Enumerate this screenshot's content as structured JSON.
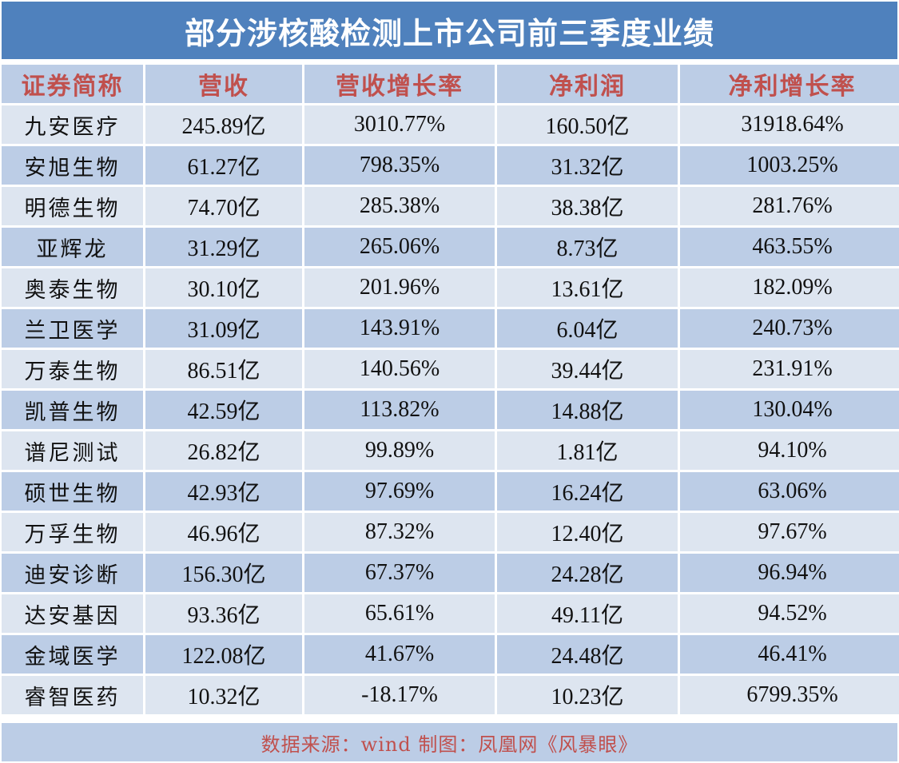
{
  "title": "部分涉核酸检测上市公司前三季度业绩",
  "table": {
    "headers": [
      "证券简称",
      "营收",
      "营收增长率",
      "净利润",
      "净利增长率"
    ],
    "rows": [
      [
        "九安医疗",
        "245.89亿",
        "3010.77%",
        "160.50亿",
        "31918.64%"
      ],
      [
        "安旭生物",
        "61.27亿",
        "798.35%",
        "31.32亿",
        "1003.25%"
      ],
      [
        "明德生物",
        "74.70亿",
        "285.38%",
        "38.38亿",
        "281.76%"
      ],
      [
        "亚辉龙",
        "31.29亿",
        "265.06%",
        "8.73亿",
        "463.55%"
      ],
      [
        "奥泰生物",
        "30.10亿",
        "201.96%",
        "13.61亿",
        "182.09%"
      ],
      [
        "兰卫医学",
        "31.09亿",
        "143.91%",
        "6.04亿",
        "240.73%"
      ],
      [
        "万泰生物",
        "86.51亿",
        "140.56%",
        "39.44亿",
        "231.91%"
      ],
      [
        "凯普生物",
        "42.59亿",
        "113.82%",
        "14.88亿",
        "130.04%"
      ],
      [
        "谱尼测试",
        "26.82亿",
        "99.89%",
        "1.81亿",
        "94.10%"
      ],
      [
        "硕世生物",
        "42.93亿",
        "97.69%",
        "16.24亿",
        "63.06%"
      ],
      [
        "万孚生物",
        "46.96亿",
        "87.32%",
        "12.40亿",
        "97.67%"
      ],
      [
        "迪安诊断",
        "156.30亿",
        "67.37%",
        "24.28亿",
        "96.94%"
      ],
      [
        "达安基因",
        "93.36亿",
        "65.61%",
        "49.11亿",
        "94.52%"
      ],
      [
        "金域医学",
        "122.08亿",
        "41.67%",
        "24.48亿",
        "46.41%"
      ],
      [
        "睿智医药",
        "10.32亿",
        "-18.17%",
        "10.23亿",
        "6799.35%"
      ]
    ]
  },
  "footer": "数据来源：wind  制图：凤凰网《风暴眼》",
  "colors": {
    "title_bg": "#4f81bd",
    "header_text": "#c0504d",
    "row_light": "#dde5f0",
    "row_dark": "#bccde6"
  }
}
